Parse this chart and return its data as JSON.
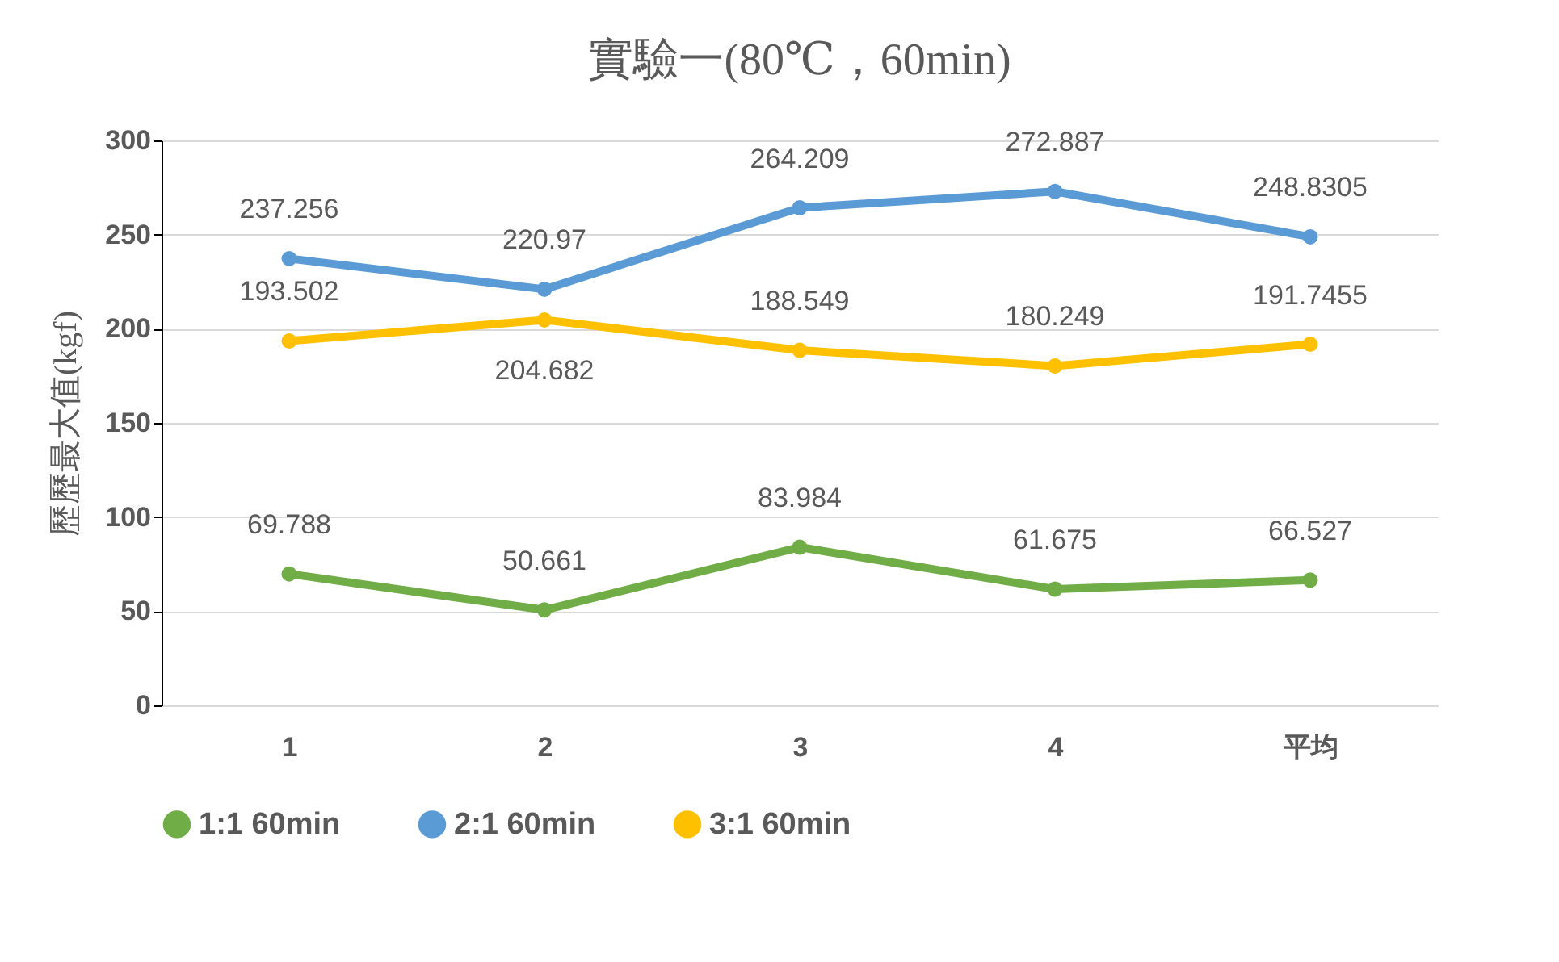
{
  "chart_data": {
    "type": "line",
    "title": "實驗一(80℃，60min)",
    "ylabel": "歷歷最大值(kgf)",
    "categories": [
      "1",
      "2",
      "3",
      "4",
      "平均"
    ],
    "series": [
      {
        "name": "1:1 60min",
        "color": "#70ad47",
        "values": [
          69.788,
          50.661,
          83.984,
          61.675,
          66.527
        ]
      },
      {
        "name": "2:1 60min",
        "color": "#5b9bd5",
        "values": [
          237.256,
          220.97,
          264.209,
          272.887,
          248.8305
        ]
      },
      {
        "name": "3:1 60min",
        "color": "#ffc000",
        "values": [
          193.502,
          204.682,
          188.549,
          180.249,
          191.7455
        ]
      }
    ],
    "ylim": [
      0,
      300
    ],
    "yticks": [
      0,
      50,
      100,
      150,
      200,
      250,
      300
    ],
    "grid": "y",
    "legend": "bottom",
    "marker": "circle",
    "line_style": "solid",
    "data_labels": true
  }
}
